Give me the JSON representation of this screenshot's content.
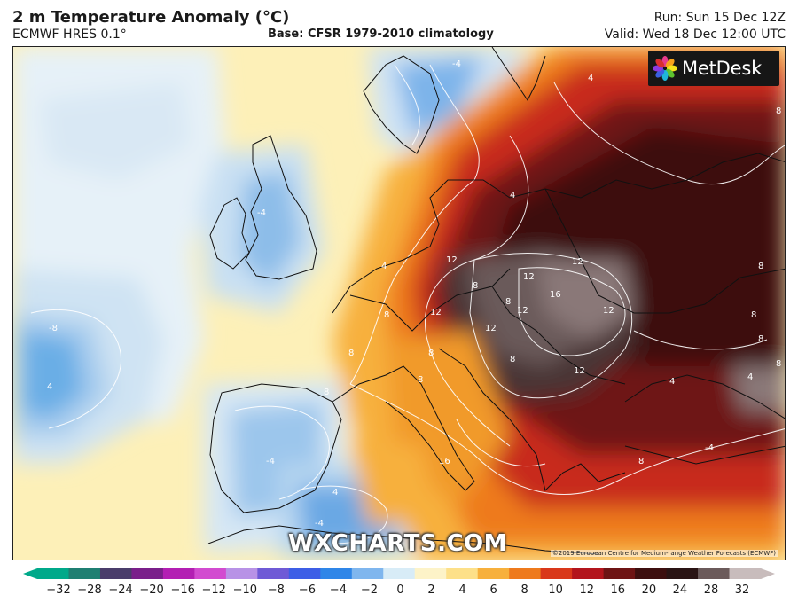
{
  "header": {
    "title": "2 m Temperature Anomaly (°C)",
    "model": "ECMWF HRES 0.1°",
    "base": "Base: CFSR 1979-2010 climatology",
    "run": "Run: Sun 15 Dec 12Z",
    "valid": "Valid: Wed 18 Dec 12:00 UTC"
  },
  "logo": {
    "text": "MetDesk",
    "icon": "metdesk-flower-icon"
  },
  "watermark": "WXCHARTS.COM",
  "copyright": "©2019 European Centre for Medium-range Weather Forecasts (ECMWF)",
  "colorbar": {
    "ticks": [
      "−32",
      "−28",
      "−24",
      "−20",
      "−16",
      "−12",
      "−10",
      "−8",
      "−6",
      "−4",
      "−2",
      "0",
      "2",
      "4",
      "6",
      "8",
      "10",
      "12",
      "16",
      "20",
      "24",
      "28",
      "32"
    ],
    "colors": [
      "#00a98a",
      "#1f7f72",
      "#4a3d6b",
      "#7a1f8a",
      "#b31fb3",
      "#d24bd0",
      "#b892e6",
      "#6f5ad6",
      "#3d5ee6",
      "#2f86e8",
      "#7fb6ee",
      "#d8ecf7",
      "#fdf3c8",
      "#fde089",
      "#f7b03c",
      "#ee7a1c",
      "#d9381a",
      "#b3151c",
      "#6e1414",
      "#3d0f0f",
      "#2a1414",
      "#6b5a5a",
      "#c8bcbc"
    ]
  },
  "contour_labels": [
    {
      "name": "contour-label-12",
      "text": "12"
    },
    {
      "name": "contour-label-12",
      "text": "12"
    },
    {
      "name": "contour-label-12",
      "text": "12"
    },
    {
      "name": "contour-label-16",
      "text": "16"
    },
    {
      "name": "contour-label-12",
      "text": "12"
    },
    {
      "name": "contour-label-12",
      "text": "12"
    },
    {
      "name": "contour-label-12",
      "text": "12"
    },
    {
      "name": "contour-label-12",
      "text": "12"
    },
    {
      "name": "contour-label-12",
      "text": "12"
    },
    {
      "name": "contour-label-8",
      "text": "8"
    },
    {
      "name": "contour-label-8",
      "text": "8"
    },
    {
      "name": "contour-label-8",
      "text": "8"
    },
    {
      "name": "contour-label-8",
      "text": "8"
    },
    {
      "name": "contour-label-8",
      "text": "8"
    },
    {
      "name": "contour-label-8",
      "text": "8"
    },
    {
      "name": "contour-label-8",
      "text": "8"
    },
    {
      "name": "contour-label-8",
      "text": "8"
    },
    {
      "name": "contour-label-8",
      "text": "8"
    },
    {
      "name": "contour-label-8",
      "text": "8"
    },
    {
      "name": "contour-label-8",
      "text": "8"
    },
    {
      "name": "contour-label-8",
      "text": "8"
    },
    {
      "name": "contour-label-8",
      "text": "8"
    },
    {
      "name": "contour-label-8",
      "text": "8"
    },
    {
      "name": "contour-label-16",
      "text": "16"
    },
    {
      "name": "contour-label-4",
      "text": "4"
    },
    {
      "name": "contour-label-4",
      "text": "4"
    },
    {
      "name": "contour-label-4",
      "text": "4"
    },
    {
      "name": "contour-label-4",
      "text": "4"
    },
    {
      "name": "contour-label-4",
      "text": "4"
    },
    {
      "name": "contour-label-4",
      "text": "4"
    },
    {
      "name": "contour-label-4",
      "text": "4"
    },
    {
      "name": "contour-label-minus-4",
      "text": "-4"
    },
    {
      "name": "contour-label-minus-4",
      "text": "-4"
    },
    {
      "name": "contour-label-minus-4",
      "text": "-4"
    },
    {
      "name": "contour-label-minus-4",
      "text": "-4"
    },
    {
      "name": "contour-label-minus-4",
      "text": "-4"
    },
    {
      "name": "contour-label-minus-8",
      "text": "-8"
    }
  ]
}
